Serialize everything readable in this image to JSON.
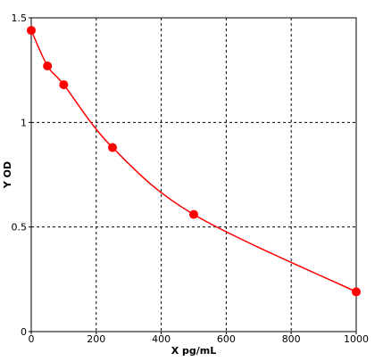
{
  "chart_data": {
    "type": "scatter",
    "x_label": "X pg/mL",
    "y_label": "Y OD",
    "x": [
      0,
      50,
      100,
      250,
      500,
      1000
    ],
    "values": [
      1.44,
      1.27,
      1.18,
      0.88,
      0.56,
      0.19
    ],
    "color": "#ff0000",
    "line": true,
    "xlim": [
      0,
      1000
    ],
    "xticks": [
      0,
      200,
      400,
      600,
      800,
      1000
    ],
    "ylim": [
      0,
      1.5
    ],
    "yticks": [
      0,
      0.5,
      1,
      1.5
    ],
    "grid": true
  }
}
